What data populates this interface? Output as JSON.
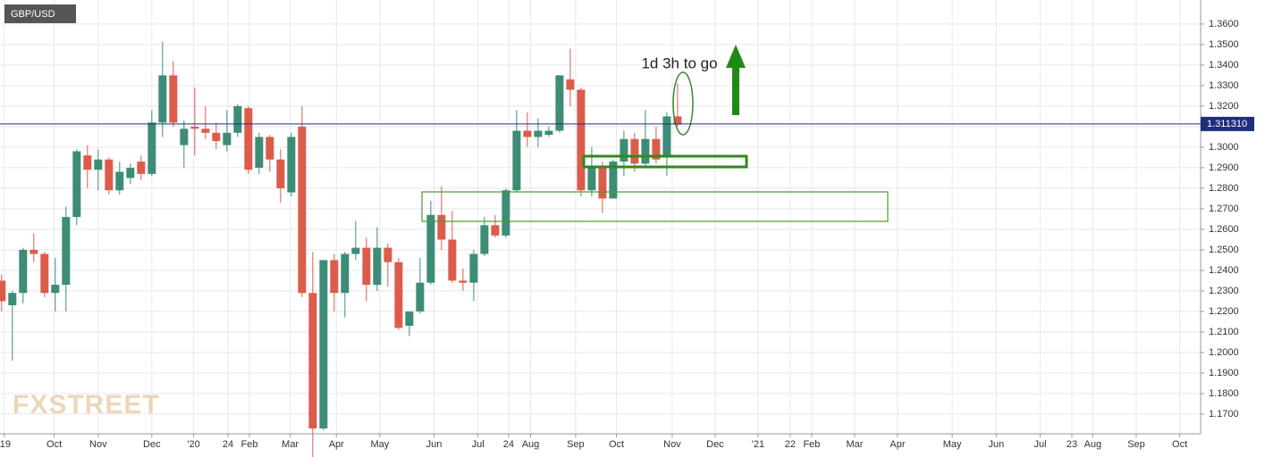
{
  "chart_data": {
    "type": "candlestick",
    "symbol": "GBP/USD",
    "watermark": "FXSTREET",
    "annotation": "1d 3h to go",
    "up_color": "#3d8c78",
    "down_color": "#dc5c4c",
    "grid": true,
    "x": [
      0,
      1,
      2,
      3,
      4,
      5,
      6,
      7,
      8,
      9,
      10,
      11,
      12,
      13,
      14,
      15,
      16,
      17,
      18,
      19,
      20,
      21,
      22,
      23,
      24,
      25,
      26,
      27,
      28,
      29,
      30,
      31,
      32,
      33,
      34,
      35,
      36,
      37,
      38,
      39,
      40,
      41,
      42,
      43,
      44,
      45,
      46,
      47,
      48,
      49,
      50,
      51,
      52,
      53,
      54,
      55,
      56,
      57,
      58,
      59,
      60,
      61,
      62,
      63
    ],
    "open": [
      1.235,
      1.223,
      1.229,
      1.25,
      1.248,
      1.229,
      1.233,
      1.266,
      1.296,
      1.289,
      1.294,
      1.279,
      1.285,
      1.293,
      1.287,
      1.312,
      1.335,
      1.301,
      1.31,
      1.309,
      1.307,
      1.301,
      1.307,
      1.319,
      1.29,
      1.305,
      1.294,
      1.278,
      1.31,
      1.229,
      1.163,
      1.245,
      1.229,
      1.248,
      1.251,
      1.233,
      1.251,
      1.244,
      1.213,
      1.22,
      1.234,
      1.267,
      1.255,
      1.235,
      1.234,
      1.248,
      1.262,
      1.257,
      1.279,
      1.308,
      1.305,
      1.306,
      1.308,
      1.333,
      1.328,
      1.279,
      1.29,
      1.275,
      1.293,
      1.304,
      1.292,
      1.304,
      1.295,
      1.315
    ],
    "high": [
      1.238,
      1.23,
      1.251,
      1.258,
      1.249,
      1.246,
      1.271,
      1.299,
      1.301,
      1.299,
      1.295,
      1.293,
      1.292,
      1.296,
      1.318,
      1.3515,
      1.342,
      1.313,
      1.329,
      1.32,
      1.312,
      1.318,
      1.321,
      1.32,
      1.307,
      1.306,
      1.299,
      1.307,
      1.32,
      1.249,
      1.245,
      1.248,
      1.249,
      1.264,
      1.256,
      1.261,
      1.253,
      1.246,
      1.22,
      1.246,
      1.274,
      1.281,
      1.269,
      1.241,
      1.25,
      1.266,
      1.267,
      1.28,
      1.318,
      1.317,
      1.314,
      1.31,
      1.335,
      1.348,
      1.329,
      1.3,
      1.293,
      1.294,
      1.308,
      1.307,
      1.318,
      1.31,
      1.317,
      1.331
    ],
    "low": [
      1.22,
      1.196,
      1.224,
      1.244,
      1.227,
      1.22,
      1.22,
      1.262,
      1.28,
      1.279,
      1.277,
      1.277,
      1.282,
      1.284,
      1.286,
      1.305,
      1.31,
      1.29,
      1.296,
      1.304,
      1.299,
      1.298,
      1.305,
      1.287,
      1.287,
      1.288,
      1.273,
      1.276,
      1.227,
      1.141,
      1.162,
      1.22,
      1.217,
      1.245,
      1.225,
      1.23,
      1.232,
      1.211,
      1.208,
      1.219,
      1.233,
      1.25,
      1.234,
      1.23,
      1.225,
      1.247,
      1.256,
      1.256,
      1.278,
      1.3,
      1.3,
      1.305,
      1.307,
      1.32,
      1.276,
      1.276,
      1.268,
      1.275,
      1.286,
      1.288,
      1.29,
      1.292,
      1.286,
      1.31
    ],
    "close": [
      1.225,
      1.229,
      1.25,
      1.248,
      1.229,
      1.233,
      1.266,
      1.298,
      1.289,
      1.294,
      1.279,
      1.288,
      1.29,
      1.287,
      1.312,
      1.335,
      1.312,
      1.309,
      1.309,
      1.307,
      1.303,
      1.307,
      1.32,
      1.289,
      1.305,
      1.294,
      1.28,
      1.305,
      1.229,
      1.163,
      1.245,
      1.229,
      1.248,
      1.251,
      1.233,
      1.251,
      1.244,
      1.212,
      1.22,
      1.234,
      1.267,
      1.255,
      1.235,
      1.234,
      1.248,
      1.262,
      1.257,
      1.279,
      1.308,
      1.305,
      1.308,
      1.308,
      1.335,
      1.328,
      1.279,
      1.29,
      1.275,
      1.293,
      1.304,
      1.292,
      1.304,
      1.294,
      1.315,
      1.311
    ],
    "xlim": [
      -0.15,
      111.75
    ],
    "xticks": [
      {
        "value": 0.25,
        "label": "'19"
      },
      {
        "value": 4.9,
        "label": "Oct"
      },
      {
        "value": 9,
        "label": "Nov"
      },
      {
        "value": 14,
        "label": "Dec"
      },
      {
        "value": 17.9,
        "label": "'20"
      },
      {
        "value": 21.1,
        "label": "24"
      },
      {
        "value": 23.1,
        "label": "Feb"
      },
      {
        "value": 26.9,
        "label": "Mar"
      },
      {
        "value": 31.2,
        "label": "Apr"
      },
      {
        "value": 35.25,
        "label": "May"
      },
      {
        "value": 40.3,
        "label": "Jun"
      },
      {
        "value": 44.4,
        "label": "Jul"
      },
      {
        "value": 47.25,
        "label": "24"
      },
      {
        "value": 49.3,
        "label": "Aug"
      },
      {
        "value": 53.5,
        "label": "Sep"
      },
      {
        "value": 57.3,
        "label": "Oct"
      },
      {
        "value": 62.5,
        "label": "Nov"
      },
      {
        "value": 66.5,
        "label": "Dec"
      },
      {
        "value": 70.5,
        "label": "'21"
      },
      {
        "value": 73.5,
        "label": "22"
      },
      {
        "value": 75.5,
        "label": "Feb"
      },
      {
        "value": 79.5,
        "label": "Mar"
      },
      {
        "value": 83.5,
        "label": "Apr"
      },
      {
        "value": 88.6,
        "label": "May"
      },
      {
        "value": 92.7,
        "label": "Jun"
      },
      {
        "value": 96.8,
        "label": "Jul"
      },
      {
        "value": 99.75,
        "label": "23"
      },
      {
        "value": 101.7,
        "label": "Aug"
      },
      {
        "value": 105.75,
        "label": "Sep"
      },
      {
        "value": 109.8,
        "label": "Oct"
      }
    ],
    "ylim": [
      1.1604,
      1.3717
    ],
    "yticks": [
      {
        "value": 1.36,
        "label": "1.3600"
      },
      {
        "value": 1.35,
        "label": "1.3500"
      },
      {
        "value": 1.34,
        "label": "1.3400"
      },
      {
        "value": 1.33,
        "label": "1.3300"
      },
      {
        "value": 1.32,
        "label": "1.3200"
      },
      {
        "value": 1.31,
        "label": "1.3100"
      },
      {
        "value": 1.3,
        "label": "1.3000"
      },
      {
        "value": 1.29,
        "label": "1.2900"
      },
      {
        "value": 1.28,
        "label": "1.2800"
      },
      {
        "value": 1.27,
        "label": "1.2700"
      },
      {
        "value": 1.26,
        "label": "1.2600"
      },
      {
        "value": 1.25,
        "label": "1.2500"
      },
      {
        "value": 1.24,
        "label": "1.2400"
      },
      {
        "value": 1.23,
        "label": "1.2300"
      },
      {
        "value": 1.22,
        "label": "1.2200"
      },
      {
        "value": 1.21,
        "label": "1.2100"
      },
      {
        "value": 1.2,
        "label": "1.2000"
      },
      {
        "value": 1.19,
        "label": "1.1900"
      },
      {
        "value": 1.18,
        "label": "1.1800"
      },
      {
        "value": 1.17,
        "label": "1.1700"
      }
    ],
    "price_line": {
      "value": 1.31131,
      "label": "1.311310",
      "color": "#1f2e7a"
    }
  }
}
